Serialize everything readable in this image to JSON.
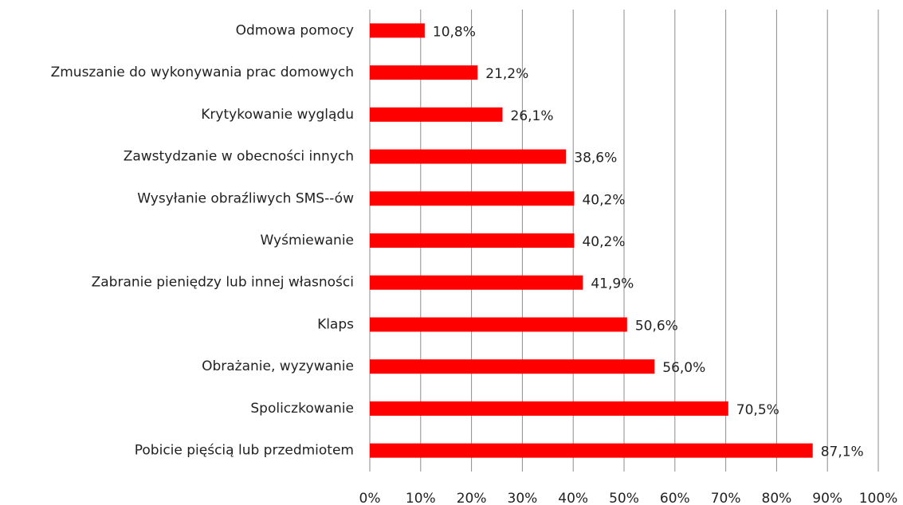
{
  "chart_data": {
    "type": "bar",
    "orientation": "horizontal",
    "categories": [
      "Odmowa pomocy",
      "Zmuszanie do wykonywania prac domowych",
      "Krytykowanie wyglądu",
      "Zawstydzanie w obecności innych",
      "Wysyłanie obraźliwych SMS--ów",
      "Wyśmiewanie",
      "Zabranie pieniędzy lub innej własności",
      "Klaps",
      "Obrażanie, wyzywanie",
      "Spoliczkowanie",
      "Pobicie pięścią lub przedmiotem"
    ],
    "values": [
      10.8,
      21.2,
      26.1,
      38.6,
      40.2,
      40.2,
      41.9,
      50.6,
      56.0,
      70.5,
      87.1
    ],
    "value_labels": [
      "10,8%",
      "21,2%",
      "26,1%",
      "38,6%",
      "40,2%",
      "40,2%",
      "41,9%",
      "50,6%",
      "56,0%",
      "70,5%",
      "87,1%"
    ],
    "color": "#ff0000",
    "xlim": [
      0,
      100
    ],
    "xticks": [
      {
        "value": 0,
        "label": "0%"
      },
      {
        "value": 10,
        "label": "10%"
      },
      {
        "value": 20,
        "label": "20%"
      },
      {
        "value": 30,
        "label": "30%"
      },
      {
        "value": 40,
        "label": "40%"
      },
      {
        "value": 50,
        "label": "50%"
      },
      {
        "value": 60,
        "label": "60%"
      },
      {
        "value": 70,
        "label": "70%"
      },
      {
        "value": 80,
        "label": "80%"
      },
      {
        "value": 90,
        "label": "90%"
      },
      {
        "value": 100,
        "label": "100%"
      }
    ],
    "grid": true
  }
}
